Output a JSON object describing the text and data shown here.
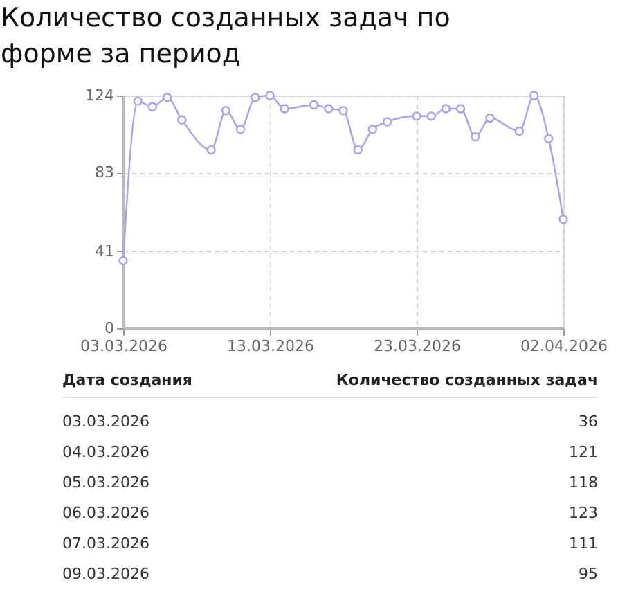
{
  "chart_data": {
    "type": "line",
    "title": "Количество созданных задач по форме за период",
    "x": [
      "2026-03-03",
      "2026-03-04",
      "2026-03-05",
      "2026-03-06",
      "2026-03-07",
      "2026-03-09",
      "2026-03-10",
      "2026-03-11",
      "2026-03-12",
      "2026-03-13",
      "2026-03-14",
      "2026-03-16",
      "2026-03-17",
      "2026-03-18",
      "2026-03-19",
      "2026-03-20",
      "2026-03-21",
      "2026-03-23",
      "2026-03-24",
      "2026-03-25",
      "2026-03-26",
      "2026-03-27",
      "2026-03-28",
      "2026-03-30",
      "2026-03-31",
      "2026-04-01",
      "2026-04-02"
    ],
    "series": [
      {
        "color": "#aaa0f2",
        "values": [
          36,
          121,
          118,
          123,
          111,
          95,
          116,
          106,
          123,
          124,
          117,
          119,
          117,
          116,
          95,
          106,
          110,
          113,
          113,
          117,
          117,
          102,
          112,
          105,
          124,
          101,
          58
        ]
      }
    ],
    "xlim": [
      "2026-03-03",
      "2026-04-02"
    ],
    "xticks": [
      {
        "value": "2026-03-03",
        "label": "03.03.2026"
      },
      {
        "value": "2026-03-13",
        "label": "13.03.2026"
      },
      {
        "value": "2026-03-23",
        "label": "23.03.2026"
      },
      {
        "value": "2026-04-02",
        "label": "02.04.2026"
      }
    ],
    "ylim": [
      0,
      124
    ],
    "yticks": [
      0,
      41,
      83,
      124
    ],
    "grid": true,
    "marker": "circle",
    "line_style": "solid",
    "annotations": [
      "Дата создания",
      "Количество созданных задач",
      "03.03.2026",
      "36",
      "04.03.2026",
      "121",
      "05.03.2026",
      "118",
      "06.03.2026",
      "123",
      "07.03.2026",
      "111",
      "09.03.2026",
      "95"
    ]
  }
}
